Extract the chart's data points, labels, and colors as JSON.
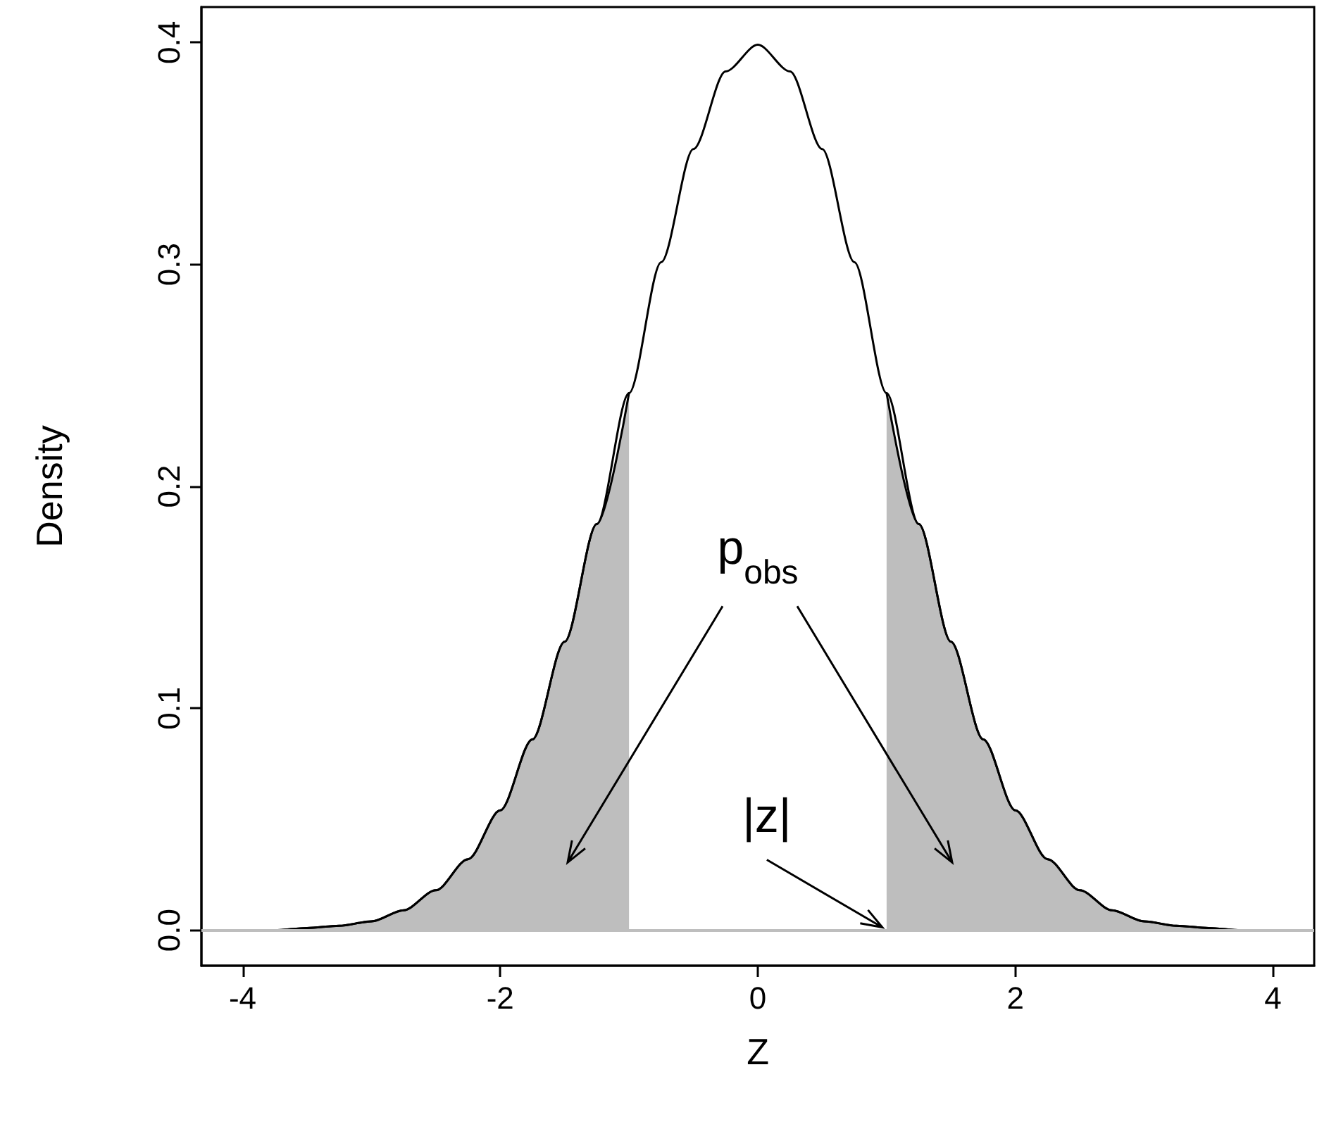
{
  "chart_data": {
    "type": "line",
    "xlabel": "Z",
    "ylabel": "Density",
    "xlim": [
      -4.32,
      4.32
    ],
    "xticks": [
      -4,
      -2,
      0,
      2,
      4
    ],
    "ylim": [
      -0.016,
      0.416
    ],
    "yticks": [
      {
        "value": 0,
        "label": "0.0"
      },
      {
        "value": 0.1,
        "label": "0.1"
      },
      {
        "value": 0.2,
        "label": "0.2"
      },
      {
        "value": 0.3,
        "label": "0.3"
      },
      {
        "value": 0.4,
        "label": "0.4"
      }
    ],
    "grid": false,
    "marker": "none",
    "line_style": "solid",
    "series": [
      {
        "type": "area",
        "color": "#bebebe",
        "x": [
          -4,
          -3.75,
          -3.5,
          -3.25,
          -3,
          -2.75,
          -2.5,
          -2.25,
          -2,
          -1.75,
          -1.5,
          -1.25,
          -1
        ],
        "values": [
          0.0,
          0.0,
          0.001,
          0.002,
          0.004,
          0.009,
          0.018,
          0.032,
          0.054,
          0.086,
          0.13,
          0.183,
          0.242
        ]
      },
      {
        "type": "area",
        "color": "#bebebe",
        "x": [
          1,
          1.25,
          1.5,
          1.75,
          2,
          2.25,
          2.5,
          2.75,
          3,
          3.25,
          3.5,
          3.75,
          4
        ],
        "values": [
          0.242,
          0.183,
          0.13,
          0.086,
          0.054,
          0.032,
          0.018,
          0.009,
          0.004,
          0.002,
          0.001,
          0.0,
          0.0
        ]
      },
      {
        "color": "#000000",
        "x": [
          -4,
          -3.75,
          -3.5,
          -3.25,
          -3,
          -2.75,
          -2.5,
          -2.25,
          -2,
          -1.75,
          -1.5,
          -1.25,
          -1,
          -0.75,
          -0.5,
          -0.25,
          0,
          0.25,
          0.5,
          0.75,
          1,
          1.25,
          1.5,
          1.75,
          2,
          2.25,
          2.5,
          2.75,
          3,
          3.25,
          3.5,
          3.75,
          4
        ],
        "values": [
          0.0,
          0.0,
          0.001,
          0.002,
          0.004,
          0.009,
          0.018,
          0.032,
          0.054,
          0.086,
          0.13,
          0.183,
          0.242,
          0.301,
          0.352,
          0.387,
          0.399,
          0.387,
          0.352,
          0.301,
          0.242,
          0.183,
          0.13,
          0.086,
          0.054,
          0.032,
          0.018,
          0.009,
          0.004,
          0.002,
          0.001,
          0.0,
          0.0
        ]
      }
    ],
    "ref_lines": [
      {
        "axis": "y",
        "value": 0,
        "color": "#bebebe"
      }
    ],
    "annotations": [
      "p$_{obs}$",
      {
        "text": "|z|",
        "x": 1,
        "y": 0
      }
    ]
  }
}
